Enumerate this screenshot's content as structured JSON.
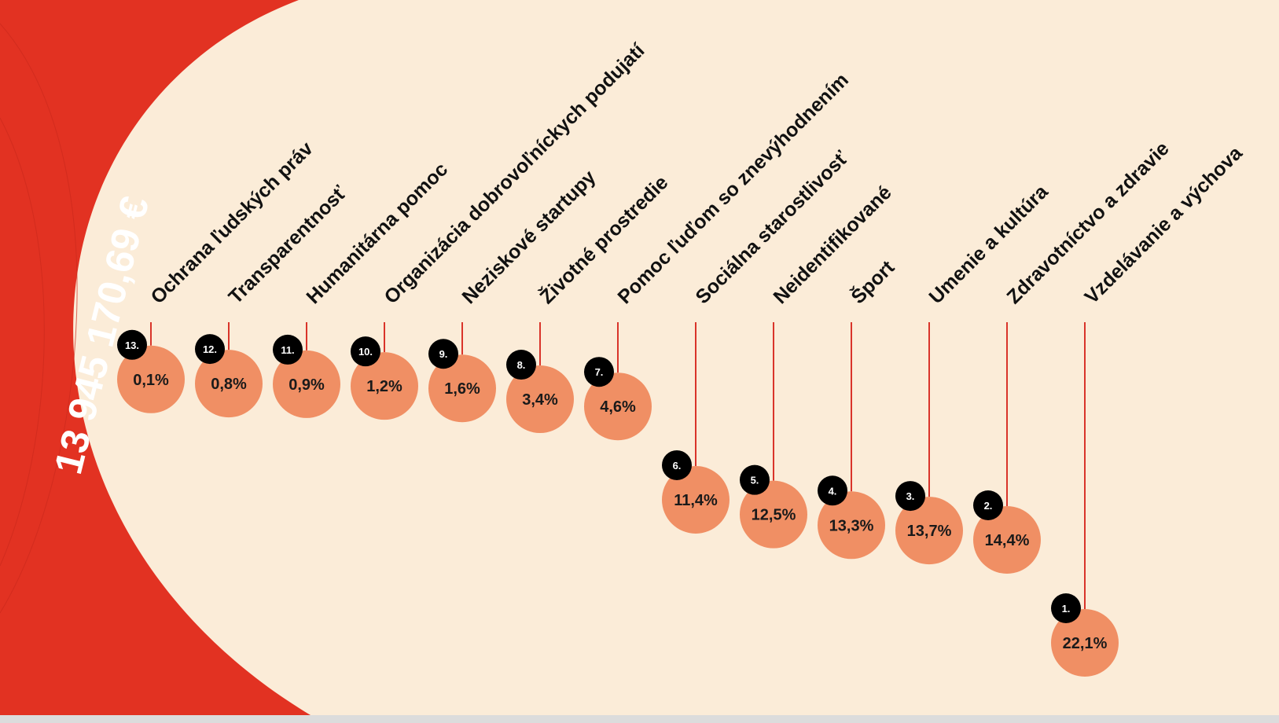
{
  "total_amount": "13 945 170,69 €",
  "colors": {
    "background": "#fbecd8",
    "arc": "#e23222",
    "bubble": "#f08f64",
    "connector": "#d9342a",
    "rank_badge": "#000000"
  },
  "chart_data": {
    "type": "bubble-ranking",
    "unit": "%",
    "items": [
      {
        "category": "Ochrana ľudských práv",
        "rank": "13.",
        "value": 0.1,
        "label": "0,1%"
      },
      {
        "category": "Transparentnosť",
        "rank": "12.",
        "value": 0.8,
        "label": "0,8%"
      },
      {
        "category": "Humanitárna pomoc",
        "rank": "11.",
        "value": 0.9,
        "label": "0,9%"
      },
      {
        "category": "Organizácia dobrovoľníckych podujatí",
        "rank": "10.",
        "value": 1.2,
        "label": "1,2%"
      },
      {
        "category": "Neziskové startupy",
        "rank": "9.",
        "value": 1.6,
        "label": "1,6%"
      },
      {
        "category": "Životné prostredie",
        "rank": "8.",
        "value": 3.4,
        "label": "3,4%"
      },
      {
        "category": "Pomoc ľuďom so znevýhodnením",
        "rank": "7.",
        "value": 4.6,
        "label": "4,6%"
      },
      {
        "category": "Sociálna starostlivosť",
        "rank": "6.",
        "value": 11.4,
        "label": "11,4%"
      },
      {
        "category": "Neidentifikované",
        "rank": "5.",
        "value": 12.5,
        "label": "12,5%"
      },
      {
        "category": "Šport",
        "rank": "4.",
        "value": 13.3,
        "label": "13,3%"
      },
      {
        "category": "Umenie a kultúra",
        "rank": "3.",
        "value": 13.7,
        "label": "13,7%"
      },
      {
        "category": "Zdravotníctvo a zdravie",
        "rank": "2.",
        "value": 14.4,
        "label": "14,4%"
      },
      {
        "category": "Vzdelávanie a výchova",
        "rank": "1.",
        "value": 22.1,
        "label": "22,1%"
      }
    ]
  }
}
